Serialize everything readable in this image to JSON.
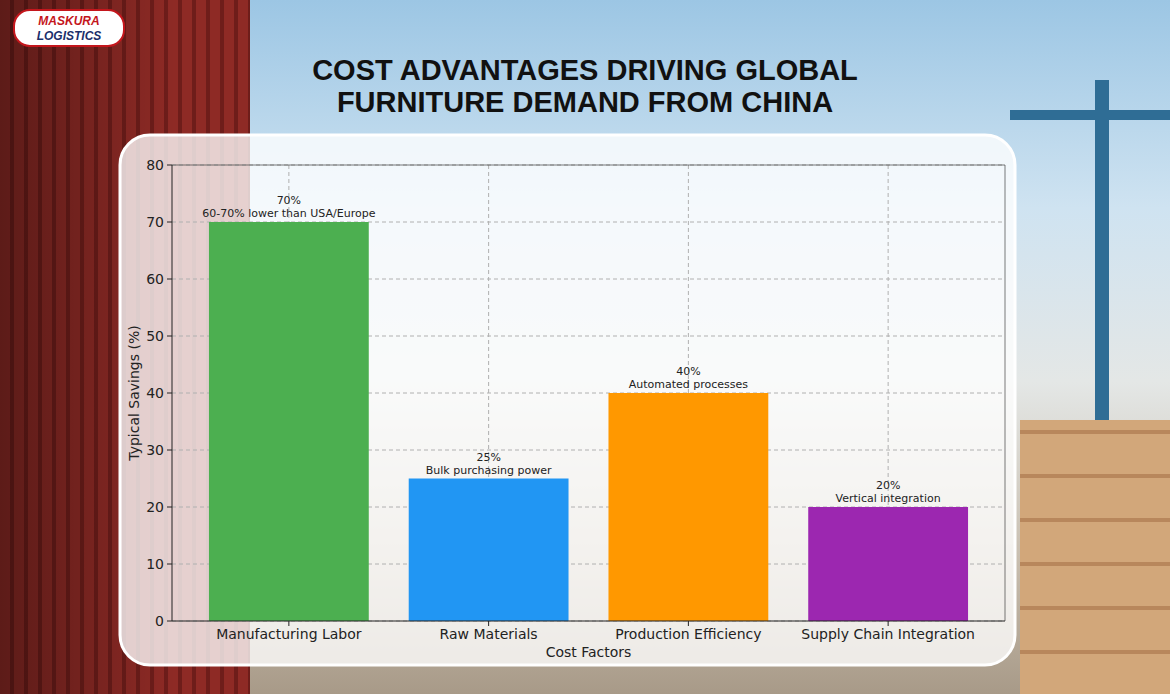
{
  "logo": [
    "MASKURA",
    "LOGISTICS"
  ],
  "chart_data": {
    "type": "bar",
    "title": "COST ADVANTAGES DRIVING GLOBAL FURNITURE DEMAND FROM CHINA",
    "x_label": "Cost Factors",
    "y_label": "Typical Savings (%)",
    "categories": [
      "Manufacturing Labor",
      "Raw Materials",
      "Production Efficiency",
      "Supply Chain Integration"
    ],
    "values": [
      70,
      25,
      40,
      20
    ],
    "value_labels": [
      "70%",
      "25%",
      "40%",
      "20%"
    ],
    "annotations": [
      "60-70% lower than USA/Europe",
      "Bulk purchasing power",
      "Automated processes",
      "Vertical integration"
    ],
    "colors": [
      "#4caf50",
      "#2196f3",
      "#ff9800",
      "#9c27b0"
    ],
    "ylim": [
      0,
      80
    ],
    "yticks": [
      0,
      10,
      20,
      30,
      40,
      50,
      60,
      70,
      80
    ],
    "grid": true,
    "data_labels": true
  }
}
